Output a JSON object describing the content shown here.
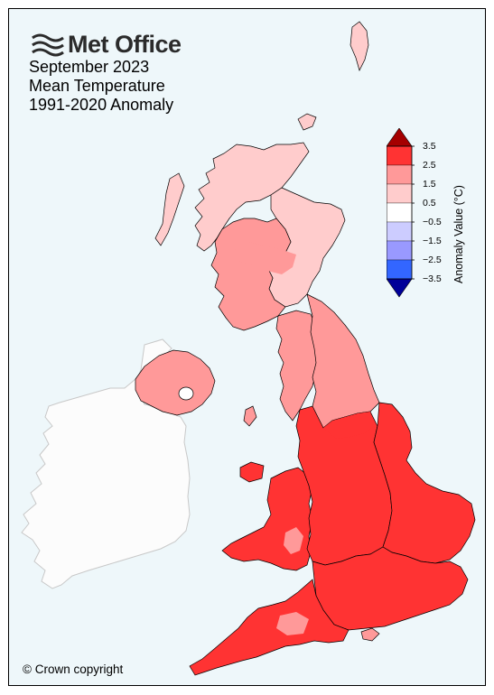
{
  "brand": {
    "name": "Met Office"
  },
  "title": {
    "line1": "September 2023",
    "line2": "Mean Temperature",
    "line3": "1991-2020 Anomaly"
  },
  "copyright": "© Crown copyright",
  "colorbar": {
    "title": "Anomaly Value (°C)",
    "ticks": [
      "3.5",
      "2.5",
      "1.5",
      "0.5",
      "−0.5",
      "−1.5",
      "−2.5",
      "−3.5"
    ],
    "bins": [
      {
        "range": "> 3.5",
        "color": "#a50000"
      },
      {
        "range": "2.5 – 3.5",
        "color": "#ff3333"
      },
      {
        "range": "1.5 – 2.5",
        "color": "#ff9999"
      },
      {
        "range": "0.5 – 1.5",
        "color": "#ffcccc"
      },
      {
        "range": "−0.5 – 0.5",
        "color": "#ffffff"
      },
      {
        "range": "−1.5 – −0.5",
        "color": "#ccccff"
      },
      {
        "range": "−2.5 – −1.5",
        "color": "#9999ff"
      },
      {
        "range": "−3.5 – −2.5",
        "color": "#3366ff"
      },
      {
        "range": "< −3.5",
        "color": "#000099"
      }
    ]
  },
  "map_colors": {
    "sea": "#eef7fa",
    "ireland": "#fcfcfc",
    "ireland_border": "#c8c8c8",
    "region_border": "#000000"
  },
  "regions": [
    {
      "name": "Northern Scotland",
      "anomaly_class": "0.5 – 1.5"
    },
    {
      "name": "Eastern Scotland",
      "anomaly_class": "0.5 – 1.5"
    },
    {
      "name": "Western Scotland",
      "anomaly_class": "1.5 – 2.5"
    },
    {
      "name": "Northern Ireland",
      "anomaly_class": "1.5 – 2.5"
    },
    {
      "name": "North West England",
      "anomaly_class": "1.5 – 2.5"
    },
    {
      "name": "North East England",
      "anomaly_class": "1.5 – 2.5"
    },
    {
      "name": "Wales",
      "anomaly_class": "2.5 – 3.5"
    },
    {
      "name": "Midlands",
      "anomaly_class": "2.5 – 3.5"
    },
    {
      "name": "East Anglia",
      "anomaly_class": "2.5 – 3.5"
    },
    {
      "name": "South East England",
      "anomaly_class": "2.5 – 3.5"
    },
    {
      "name": "South West England",
      "anomaly_class": "2.5 – 3.5"
    }
  ]
}
